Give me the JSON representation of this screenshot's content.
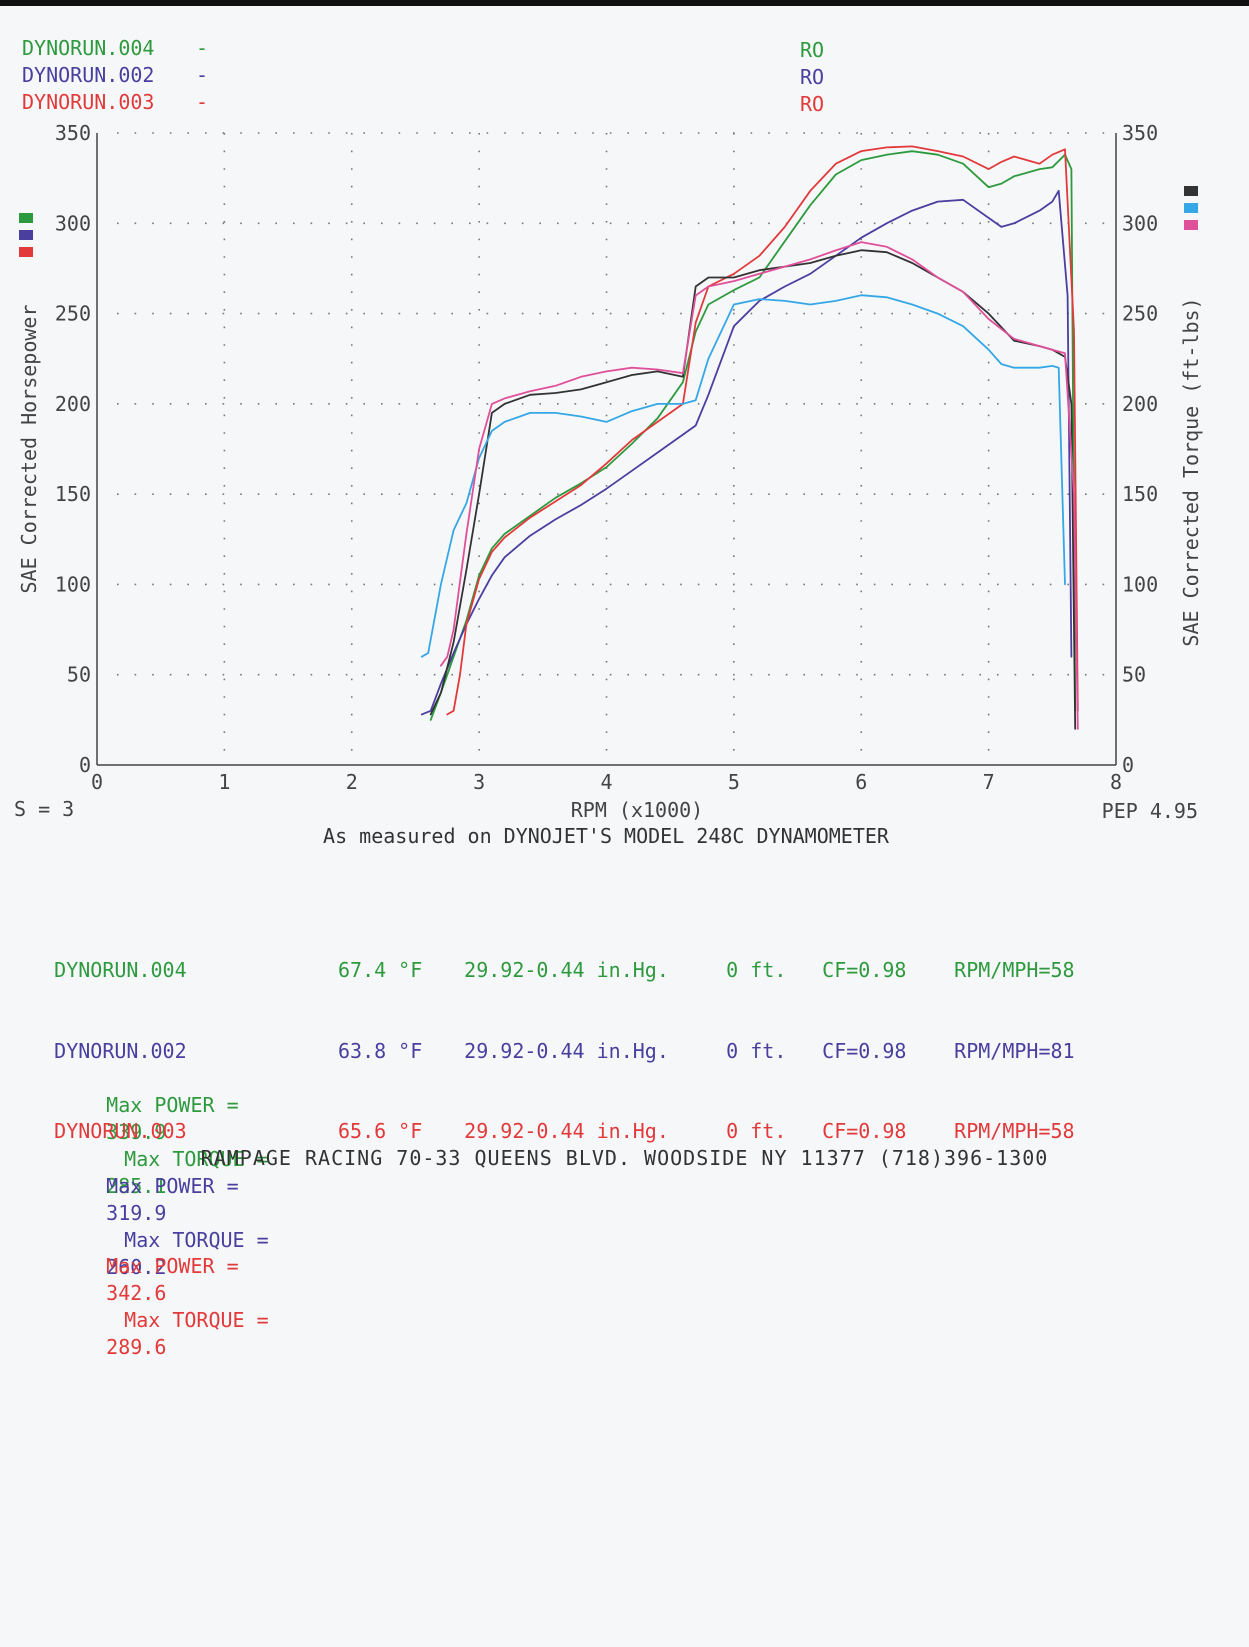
{
  "colors": {
    "run_004": "#2e9a3e",
    "run_002": "#4a3f9f",
    "run_003": "#e23a3a",
    "torque_004": "#333333",
    "torque_002": "#35a7e6",
    "torque_003": "#e0509a",
    "axis": "#444444",
    "grid": "#777777"
  },
  "legend": [
    {
      "name": "DYNORUN.004",
      "dash": "-",
      "tag": "RO",
      "color": "#2e9a3e"
    },
    {
      "name": "DYNORUN.002",
      "dash": "-",
      "tag": "RO",
      "color": "#4a3f9f"
    },
    {
      "name": "DYNORUN.003",
      "dash": "-",
      "tag": "RO",
      "color": "#e23a3a"
    }
  ],
  "chart_data": {
    "type": "line",
    "xlabel": "RPM (x1000)",
    "ylabel_left": "SAE Corrected Horsepower",
    "ylabel_right": "SAE Corrected Torque (ft-lbs)",
    "xlim": [
      0,
      8
    ],
    "ylim": [
      0,
      350
    ],
    "x_ticks": [
      "0",
      "1",
      "2",
      "3",
      "4",
      "5",
      "6",
      "7",
      "8"
    ],
    "y_ticks": [
      "0",
      "50",
      "100",
      "150",
      "200",
      "250",
      "300",
      "350"
    ],
    "grid": true,
    "footer_left": "S = 3",
    "footer_right": "PEP 4.95",
    "caption": "As measured on DYNOJET'S MODEL 248C DYNAMOMETER",
    "series": [
      {
        "name": "DYNORUN.004",
        "metric": "power",
        "color": "#2e9a3e",
        "x": [
          2.62,
          2.7,
          2.8,
          2.9,
          3.0,
          3.1,
          3.2,
          3.4,
          3.6,
          3.8,
          4.0,
          4.2,
          4.4,
          4.6,
          4.7,
          4.8,
          5.0,
          5.2,
          5.4,
          5.6,
          5.8,
          6.0,
          6.2,
          6.4,
          6.6,
          6.8,
          7.0,
          7.1,
          7.2,
          7.4,
          7.5,
          7.6,
          7.65,
          7.68
        ],
        "y": [
          25,
          40,
          60,
          80,
          105,
          120,
          128,
          138,
          148,
          156,
          165,
          178,
          192,
          212,
          240,
          255,
          263,
          270,
          290,
          310,
          327,
          335,
          338,
          339.9,
          338,
          333,
          320,
          322,
          326,
          330,
          331,
          338,
          330,
          30
        ]
      },
      {
        "name": "DYNORUN.002",
        "metric": "power",
        "color": "#4a3f9f",
        "x": [
          2.55,
          2.62,
          2.7,
          2.8,
          2.9,
          3.0,
          3.1,
          3.2,
          3.4,
          3.6,
          3.8,
          4.0,
          4.2,
          4.4,
          4.6,
          4.7,
          4.8,
          5.0,
          5.2,
          5.4,
          5.6,
          5.8,
          6.0,
          6.2,
          6.4,
          6.6,
          6.8,
          7.0,
          7.1,
          7.2,
          7.4,
          7.5,
          7.55,
          7.62,
          7.65
        ],
        "y": [
          28,
          30,
          45,
          62,
          78,
          92,
          105,
          115,
          127,
          136,
          144,
          153,
          163,
          173,
          183,
          188,
          205,
          243,
          257,
          265,
          272,
          282,
          292,
          300,
          307,
          312,
          313,
          303,
          298,
          300,
          307,
          312,
          318,
          260,
          60
        ]
      },
      {
        "name": "DYNORUN.003",
        "metric": "power",
        "color": "#e23a3a",
        "x": [
          2.75,
          2.8,
          2.85,
          2.9,
          3.0,
          3.1,
          3.2,
          3.4,
          3.6,
          3.8,
          4.0,
          4.2,
          4.4,
          4.6,
          4.7,
          4.8,
          5.0,
          5.2,
          5.4,
          5.6,
          5.8,
          6.0,
          6.2,
          6.4,
          6.6,
          6.8,
          7.0,
          7.1,
          7.2,
          7.4,
          7.5,
          7.6,
          7.67,
          7.7
        ],
        "y": [
          28,
          30,
          50,
          78,
          103,
          118,
          126,
          137,
          146,
          155,
          167,
          180,
          190,
          200,
          245,
          265,
          272,
          282,
          298,
          318,
          333,
          340,
          342,
          342.6,
          340,
          337,
          330,
          334,
          337,
          333,
          338,
          341,
          240,
          30
        ]
      },
      {
        "name": "DYNORUN.004",
        "metric": "torque",
        "color": "#333333",
        "x": [
          2.62,
          2.7,
          2.8,
          2.9,
          3.0,
          3.1,
          3.2,
          3.4,
          3.6,
          3.8,
          4.0,
          4.2,
          4.4,
          4.6,
          4.7,
          4.8,
          5.0,
          5.2,
          5.4,
          5.6,
          5.8,
          6.0,
          6.2,
          6.4,
          6.6,
          6.8,
          7.0,
          7.2,
          7.4,
          7.5,
          7.6,
          7.65,
          7.68
        ],
        "y": [
          28,
          40,
          68,
          108,
          150,
          195,
          200,
          205,
          206,
          208,
          212,
          216,
          218,
          215,
          265,
          270,
          270,
          274,
          276,
          278,
          282,
          285.1,
          284,
          278,
          270,
          262,
          250,
          235,
          232,
          230,
          226,
          200,
          20
        ]
      },
      {
        "name": "DYNORUN.002",
        "metric": "torque",
        "color": "#35a7e6",
        "x": [
          2.55,
          2.6,
          2.7,
          2.8,
          2.9,
          3.0,
          3.1,
          3.2,
          3.4,
          3.6,
          3.8,
          4.0,
          4.2,
          4.4,
          4.6,
          4.7,
          4.8,
          5.0,
          5.2,
          5.4,
          5.6,
          5.8,
          6.0,
          6.2,
          6.4,
          6.6,
          6.8,
          7.0,
          7.1,
          7.2,
          7.4,
          7.5,
          7.55,
          7.6
        ],
        "y": [
          60,
          62,
          100,
          130,
          145,
          170,
          185,
          190,
          195,
          195,
          193,
          190,
          196,
          200,
          200,
          202,
          225,
          255,
          258,
          257,
          255,
          257,
          260.2,
          259,
          255,
          250,
          243,
          230,
          222,
          220,
          220,
          221,
          220,
          100
        ]
      },
      {
        "name": "DYNORUN.003",
        "metric": "torque",
        "color": "#e0509a",
        "x": [
          2.7,
          2.75,
          2.8,
          2.9,
          3.0,
          3.1,
          3.2,
          3.4,
          3.6,
          3.8,
          4.0,
          4.2,
          4.4,
          4.6,
          4.7,
          4.8,
          5.0,
          5.2,
          5.4,
          5.6,
          5.8,
          6.0,
          6.2,
          6.4,
          6.6,
          6.8,
          7.0,
          7.2,
          7.4,
          7.5,
          7.6,
          7.67,
          7.7
        ],
        "y": [
          55,
          60,
          75,
          128,
          175,
          200,
          203,
          207,
          210,
          215,
          218,
          220,
          219,
          217,
          260,
          265,
          268,
          272,
          276,
          280,
          285,
          289.6,
          287,
          280,
          270,
          262,
          247,
          236,
          232,
          230,
          228,
          150,
          20
        ]
      }
    ]
  },
  "runs": [
    {
      "name": "DYNORUN.004",
      "temp": "67.4",
      "temp_unit": "°F",
      "baro": "29.92-0.44 in.Hg.",
      "alt": "0 ft.",
      "cf": "CF=0.98",
      "rpm_mph": "RPM/MPH=58",
      "max_power_label": "Max POWER =",
      "max_power": "339.9",
      "max_torque_label": "Max TORQUE =",
      "max_torque": "285.1",
      "color": "#2e9a3e"
    },
    {
      "name": "DYNORUN.002",
      "temp": "63.8",
      "temp_unit": "°F",
      "baro": "29.92-0.44 in.Hg.",
      "alt": "0 ft.",
      "cf": "CF=0.98",
      "rpm_mph": "RPM/MPH=81",
      "max_power_label": "Max POWER =",
      "max_power": "319.9",
      "max_torque_label": "Max TORQUE =",
      "max_torque": "260.2",
      "color": "#4a3f9f"
    },
    {
      "name": "DYNORUN.003",
      "temp": "65.6",
      "temp_unit": "°F",
      "baro": "29.92-0.44 in.Hg.",
      "alt": "0 ft.",
      "cf": "CF=0.98",
      "rpm_mph": "RPM/MPH=58",
      "max_power_label": "Max POWER =",
      "max_power": "342.6",
      "max_torque_label": "Max TORQUE =",
      "max_torque": "289.6",
      "color": "#e23a3a"
    }
  ],
  "footer": "RAMPAGE RACING 70-33 QUEENS BLVD. WOODSIDE NY 11377 (718)396-1300"
}
